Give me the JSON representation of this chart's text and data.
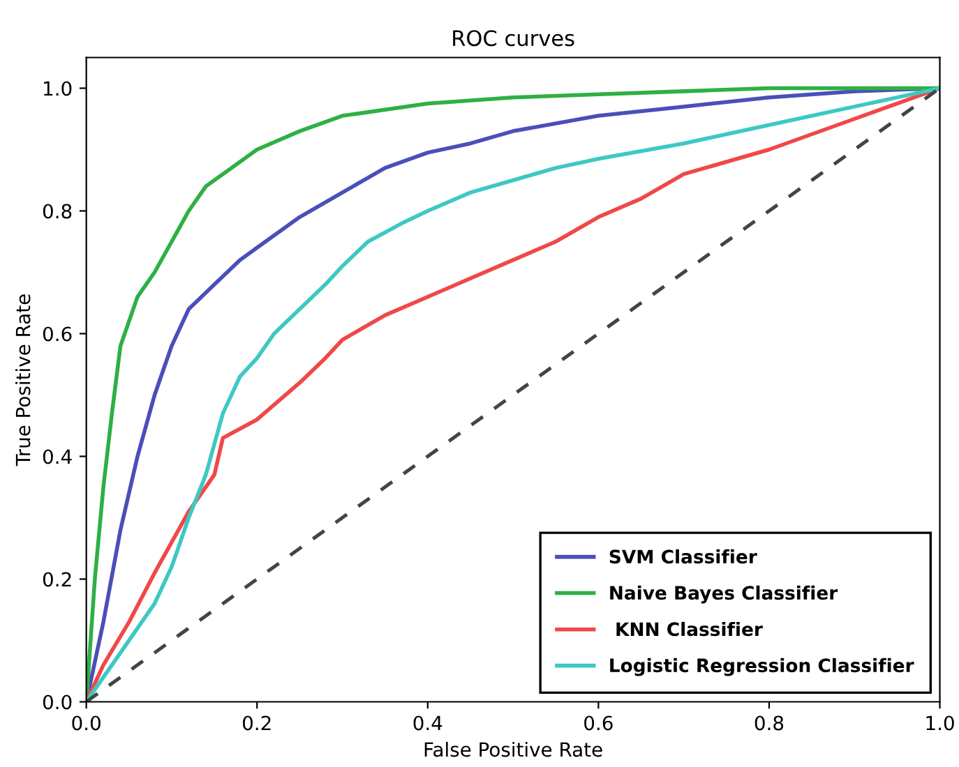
{
  "chart_data": {
    "type": "line",
    "title": "ROC curves",
    "xlabel": "False Positive Rate",
    "ylabel": "True Positive Rate",
    "xlim": [
      0,
      1
    ],
    "ylim": [
      0,
      1.05
    ],
    "xticks": [
      {
        "value": 0,
        "label": "0.0"
      },
      0.2,
      0.4,
      0.6,
      0.8,
      {
        "value": 1,
        "label": "1.0"
      }
    ],
    "yticks": [
      {
        "value": 0,
        "label": "0.0"
      },
      0.2,
      0.4,
      0.6,
      0.8,
      {
        "value": 1,
        "label": "1.0"
      }
    ],
    "grid": false,
    "legend": "bottom right",
    "marker": "none",
    "series": [
      {
        "name": "SVM Classifier",
        "color": "#4a4fb8",
        "line_style": "solid",
        "x": [
          0,
          0.02,
          0.04,
          0.06,
          0.08,
          0.1,
          0.12,
          0.15,
          0.18,
          0.2,
          0.25,
          0.3,
          0.35,
          0.4,
          0.45,
          0.5,
          0.6,
          0.7,
          0.8,
          0.9,
          1
        ],
        "values": [
          0,
          0.13,
          0.28,
          0.4,
          0.5,
          0.58,
          0.64,
          0.68,
          0.72,
          0.74,
          0.79,
          0.83,
          0.87,
          0.895,
          0.91,
          0.93,
          0.955,
          0.97,
          0.985,
          0.995,
          1
        ]
      },
      {
        "name": "Naive Bayes Classifier",
        "color": "#2eb043",
        "line_style": "solid",
        "x": [
          0,
          0.01,
          0.02,
          0.03,
          0.04,
          0.05,
          0.06,
          0.08,
          0.1,
          0.12,
          0.14,
          0.17,
          0.2,
          0.25,
          0.3,
          0.4,
          0.5,
          0.6,
          0.7,
          0.8,
          1
        ],
        "values": [
          0,
          0.2,
          0.35,
          0.47,
          0.58,
          0.62,
          0.66,
          0.7,
          0.75,
          0.8,
          0.84,
          0.87,
          0.9,
          0.93,
          0.955,
          0.975,
          0.985,
          0.99,
          0.995,
          1,
          1
        ]
      },
      {
        "name": " KNN Classifier",
        "color": "#f04848",
        "line_style": "solid",
        "x": [
          0,
          0.02,
          0.05,
          0.08,
          0.1,
          0.12,
          0.15,
          0.16,
          0.2,
          0.25,
          0.28,
          0.3,
          0.35,
          0.4,
          0.45,
          0.5,
          0.55,
          0.6,
          0.65,
          0.7,
          0.8,
          0.9,
          1
        ],
        "values": [
          0,
          0.06,
          0.13,
          0.21,
          0.26,
          0.31,
          0.37,
          0.43,
          0.46,
          0.52,
          0.56,
          0.59,
          0.63,
          0.66,
          0.69,
          0.72,
          0.75,
          0.79,
          0.82,
          0.86,
          0.9,
          0.95,
          1
        ]
      },
      {
        "name": "Logistic Regression Classifier",
        "color": "#3ec8c4",
        "line_style": "solid",
        "x": [
          0,
          0.04,
          0.08,
          0.1,
          0.12,
          0.14,
          0.16,
          0.18,
          0.2,
          0.22,
          0.25,
          0.28,
          0.3,
          0.33,
          0.37,
          0.4,
          0.45,
          0.5,
          0.55,
          0.6,
          0.7,
          0.8,
          0.9,
          1
        ],
        "values": [
          0,
          0.08,
          0.16,
          0.22,
          0.3,
          0.37,
          0.47,
          0.53,
          0.56,
          0.6,
          0.64,
          0.68,
          0.71,
          0.75,
          0.78,
          0.8,
          0.83,
          0.85,
          0.87,
          0.885,
          0.91,
          0.94,
          0.97,
          1
        ]
      },
      {
        "color": "#444444",
        "line_style": "dashed",
        "x": [
          0,
          1
        ],
        "values": [
          0,
          1
        ]
      }
    ]
  }
}
